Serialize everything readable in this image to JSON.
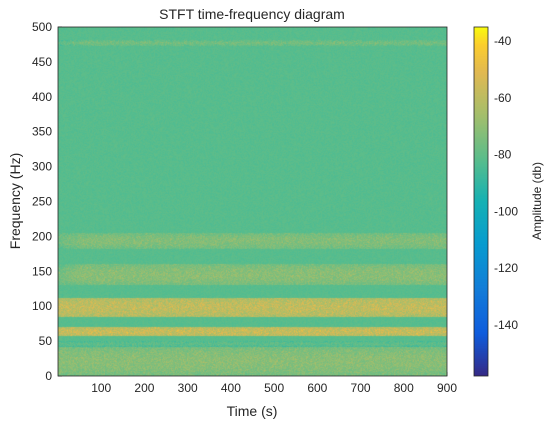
{
  "chart_data": {
    "type": "heatmap",
    "title": "STFT time-frequency diagram",
    "xlabel": "Time (s)",
    "ylabel": "Frequency (Hz)",
    "colorbar_label": "Amplitude (db)",
    "xlim": [
      0,
      900
    ],
    "ylim": [
      0,
      500
    ],
    "clim": [
      -158,
      -35
    ],
    "colormap": "parula",
    "background_level_db": -82,
    "x_ticks": [
      100,
      200,
      300,
      400,
      500,
      600,
      700,
      800,
      900
    ],
    "y_ticks": [
      0,
      50,
      100,
      150,
      200,
      250,
      300,
      350,
      400,
      450,
      500
    ],
    "colorbar_ticks": [
      -40,
      -60,
      -80,
      -100,
      -120,
      -140
    ],
    "bands": [
      {
        "freq_range_hz": [
          0,
          42
        ],
        "level_db": -68
      },
      {
        "freq_range_hz": [
          42,
          50
        ],
        "level_db": -80
      },
      {
        "freq_range_hz": [
          57,
          70
        ],
        "level_db": -50
      },
      {
        "freq_range_hz": [
          85,
          112
        ],
        "level_db": -52
      },
      {
        "freq_range_hz": [
          130,
          160
        ],
        "level_db": -68
      },
      {
        "freq_range_hz": [
          182,
          205
        ],
        "level_db": -70
      },
      {
        "freq_range_hz": [
          473,
          481
        ],
        "level_db": -74
      }
    ]
  }
}
